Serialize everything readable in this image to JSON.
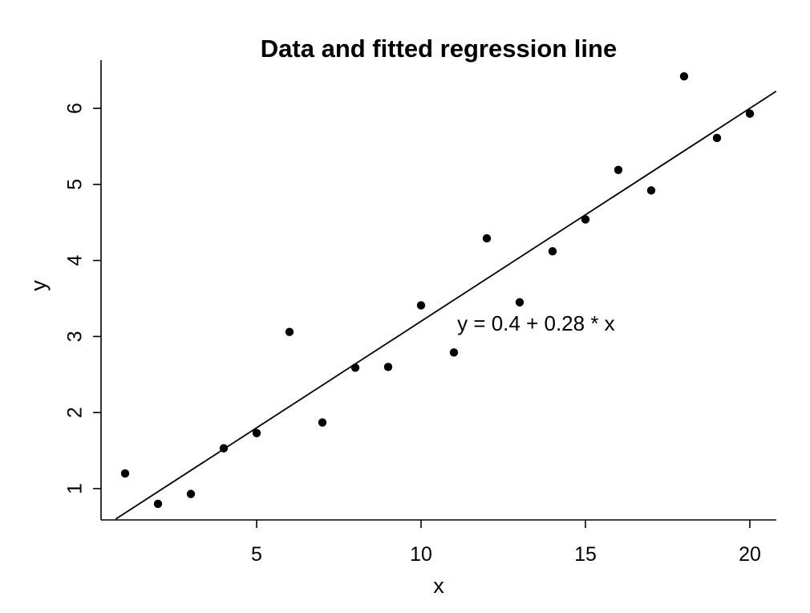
{
  "chart_data": {
    "type": "scatter",
    "title": "Data and fitted regression line",
    "xlabel": "x",
    "ylabel": "y",
    "xlim": [
      0.2,
      20.8
    ],
    "ylim": [
      0.6,
      6.6
    ],
    "x_ticks": [
      5,
      10,
      15,
      20
    ],
    "y_ticks": [
      1,
      2,
      3,
      4,
      5,
      6
    ],
    "x_tick_labels": [
      "5",
      "10",
      "15",
      "20"
    ],
    "y_tick_labels": [
      "1",
      "2",
      "3",
      "4",
      "5",
      "6"
    ],
    "grid": false,
    "legend": "none",
    "points": [
      {
        "x": 1,
        "y": 1.2
      },
      {
        "x": 2,
        "y": 0.8
      },
      {
        "x": 3,
        "y": 0.93
      },
      {
        "x": 4,
        "y": 1.53
      },
      {
        "x": 5,
        "y": 1.73
      },
      {
        "x": 6,
        "y": 3.06
      },
      {
        "x": 7,
        "y": 1.87
      },
      {
        "x": 8,
        "y": 2.59
      },
      {
        "x": 9,
        "y": 2.6
      },
      {
        "x": 10,
        "y": 3.41
      },
      {
        "x": 11,
        "y": 2.79
      },
      {
        "x": 12,
        "y": 4.29
      },
      {
        "x": 13,
        "y": 3.45
      },
      {
        "x": 14,
        "y": 4.12
      },
      {
        "x": 15,
        "y": 4.54
      },
      {
        "x": 16,
        "y": 5.19
      },
      {
        "x": 17,
        "y": 4.92
      },
      {
        "x": 18,
        "y": 6.42
      },
      {
        "x": 19,
        "y": 5.61
      },
      {
        "x": 20,
        "y": 5.93
      }
    ],
    "fit_line": {
      "intercept": 0.4,
      "slope": 0.28
    },
    "annotation": "y = 0.4 + 0.28 * x",
    "annotation_anchor": {
      "x": 11.1,
      "y": 3.08
    },
    "colors": {
      "points": "#000000",
      "line": "#000000",
      "background": "#ffffff"
    }
  }
}
